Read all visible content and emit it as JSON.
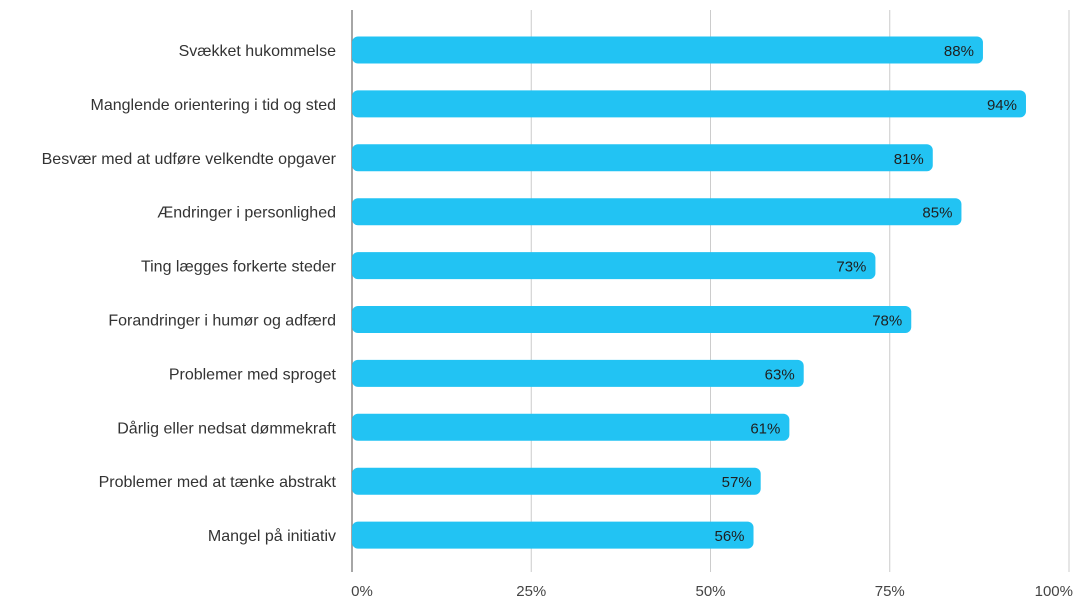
{
  "chart_data": {
    "type": "bar",
    "orientation": "horizontal",
    "categories": [
      "Svækket hukommelse",
      "Manglende orientering i tid og sted",
      "Besvær med at udføre velkendte opgaver",
      "Ændringer i personlighed",
      "Ting lægges forkerte steder",
      "Forandringer i humør og adfærd",
      "Problemer med sproget",
      "Dårlig eller nedsat dømmekraft",
      "Problemer med at tænke abstrakt",
      "Mangel på initiativ"
    ],
    "values": [
      88,
      94,
      81,
      85,
      73,
      78,
      63,
      61,
      57,
      56
    ],
    "value_labels": [
      "88%",
      "94%",
      "81%",
      "85%",
      "73%",
      "78%",
      "63%",
      "61%",
      "57%",
      "56%"
    ],
    "x_ticks": [
      0,
      25,
      50,
      75,
      100
    ],
    "x_tick_labels": [
      "0%",
      "25%",
      "50%",
      "75%",
      "100%"
    ],
    "xlim": [
      0,
      100
    ],
    "title": "",
    "xlabel": "",
    "ylabel": "",
    "grid": true,
    "legend": "none",
    "colors": {
      "bar": "#22c3f3",
      "grid": "#cccccc",
      "axis": "#888888"
    }
  }
}
